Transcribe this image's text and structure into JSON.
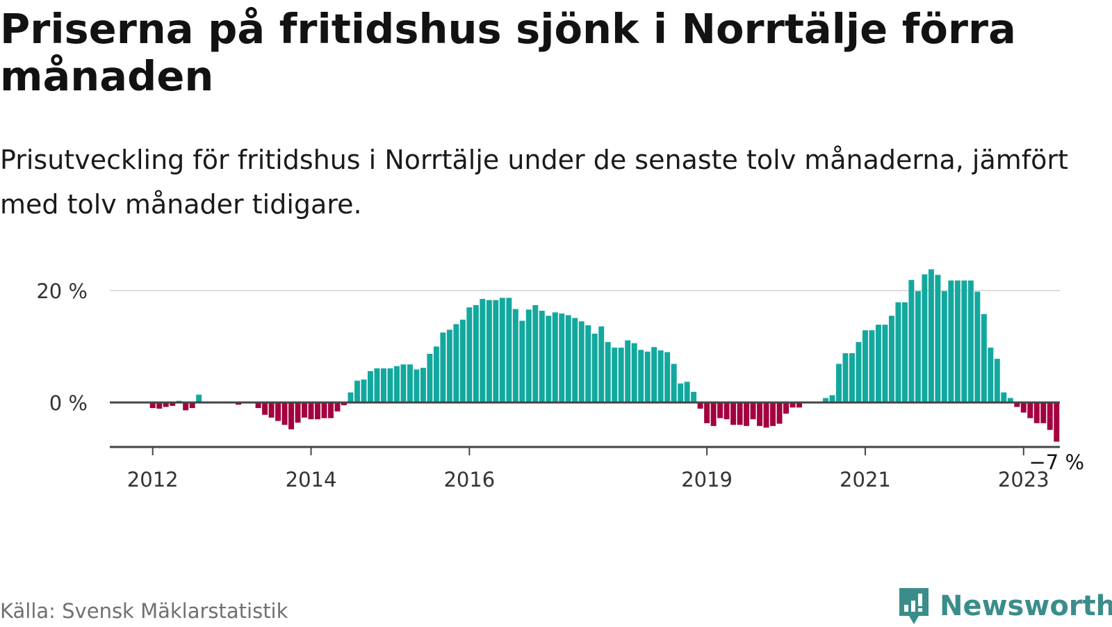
{
  "header": {
    "title": "Priserna på fritidshus sjönk i Norrtälje förra månaden",
    "subtitle": "Prisutveckling för fritidshus i Norrtälje under de senaste tolv månaderna, jämfört med tolv månader tidigare."
  },
  "footer": {
    "source": "Källa: Svensk Mäklarstatistik",
    "brand": "Newsworthy",
    "brand_icon": "bar-chart-speech-bubble-icon"
  },
  "colors": {
    "positive": "#13a89e",
    "negative": "#a3003f",
    "brand": "#3a8d8a"
  },
  "chart_data": {
    "type": "bar",
    "title": "",
    "xlabel": "",
    "ylabel": "",
    "y_unit": "%",
    "ylim": [
      -8,
      25
    ],
    "y_ticks": [
      {
        "value": 0,
        "label": "0 %"
      },
      {
        "value": 20,
        "label": "20 %"
      }
    ],
    "x_ticks": [
      {
        "label": "2012",
        "index": 6
      },
      {
        "label": "2014",
        "index": 30
      },
      {
        "label": "2016",
        "index": 54
      },
      {
        "label": "2019",
        "index": 90
      },
      {
        "label": "2021",
        "index": 114
      },
      {
        "label": "2023",
        "index": 138
      }
    ],
    "grid": true,
    "last_value_label": "−7 %",
    "series": [
      {
        "values": [
          0,
          0,
          0,
          0,
          0,
          0,
          -1,
          -1.1,
          -0.8,
          -0.6,
          0.3,
          -1.4,
          -1,
          1.4,
          0,
          0,
          0,
          0,
          0,
          -0.4,
          0,
          0,
          -1,
          -2.2,
          -2.7,
          -3.3,
          -4,
          -4.8,
          -3.6,
          -2.7,
          -3,
          -3,
          -2.8,
          -2.8,
          -1.6,
          -0.5,
          1.8,
          3.9,
          4.1,
          5.6,
          6.1,
          6.1,
          6.1,
          6.5,
          6.8,
          6.8,
          5.9,
          6.2,
          8.7,
          10,
          12.5,
          13,
          14,
          14.8,
          17,
          17.4,
          18.5,
          18.3,
          18.3,
          18.7,
          18.7,
          16.7,
          14.6,
          16.6,
          17.4,
          16.4,
          15.5,
          16.1,
          15.9,
          15.6,
          15.1,
          14.5,
          13.8,
          12.3,
          13.6,
          10.8,
          9.8,
          9.8,
          11.1,
          10.6,
          9.4,
          9.1,
          9.9,
          9.3,
          9,
          6.9,
          3.4,
          3.7,
          1.9,
          -1.1,
          -3.7,
          -4.2,
          -2.8,
          -3,
          -4,
          -4,
          -4.2,
          -3,
          -4.2,
          -4.5,
          -4.2,
          -3.8,
          -2,
          -0.9,
          -0.9,
          0,
          0,
          0,
          0.8,
          1.3,
          6.9,
          8.8,
          8.8,
          10.8,
          12.9,
          12.9,
          13.9,
          13.9,
          15.5,
          17.9,
          17.9,
          21.9,
          19.9,
          22.9,
          23.8,
          22.8,
          19.9,
          21.8,
          21.8,
          21.8,
          21.8,
          19.8,
          15.8,
          9.8,
          7.8,
          1.8,
          0.8,
          -0.8,
          -1.8,
          -2.8,
          -3.7,
          -3.7,
          -4.9,
          -7
        ]
      }
    ]
  }
}
